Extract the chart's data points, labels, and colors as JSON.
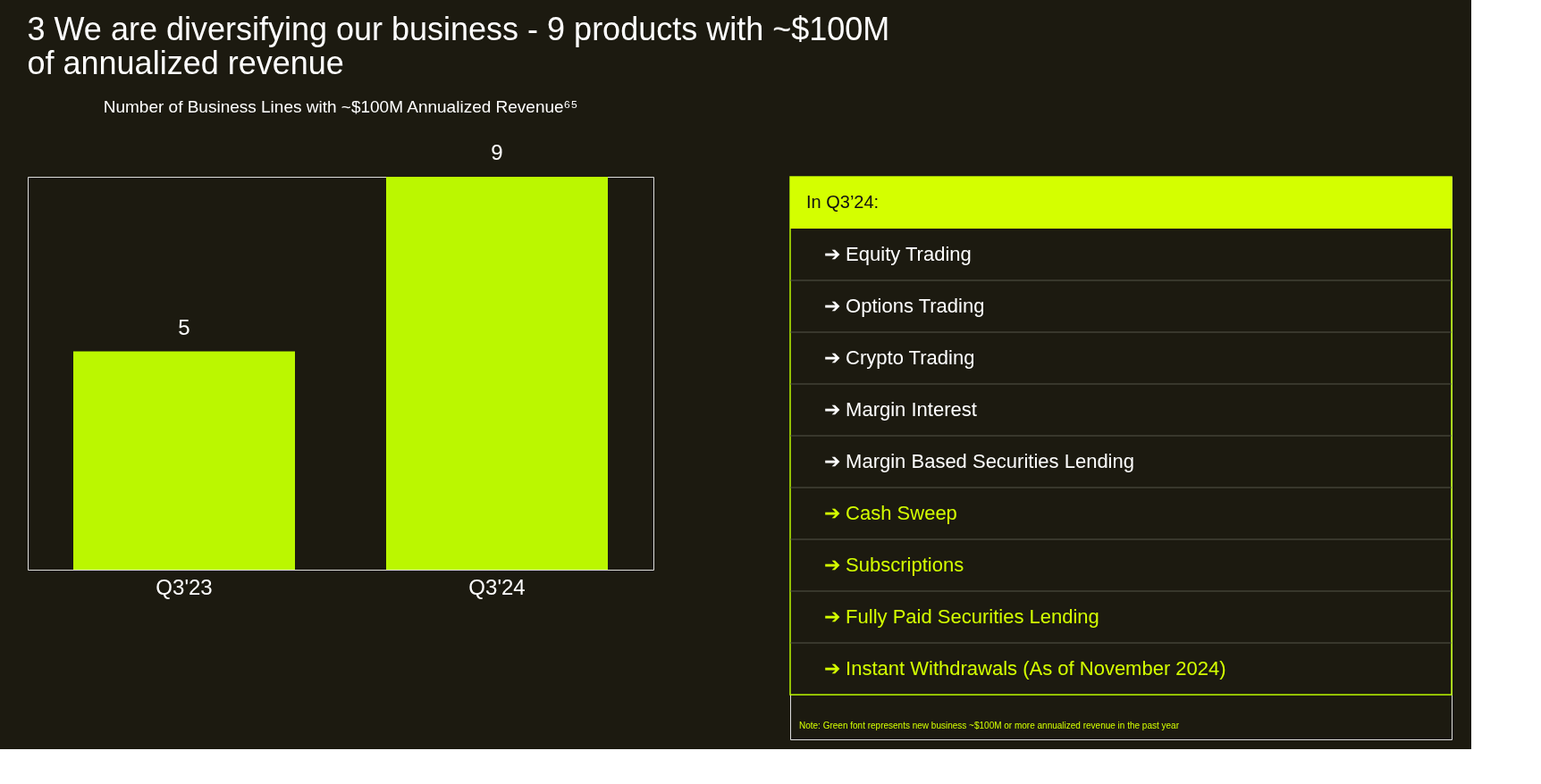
{
  "chart_data": [
    {
      "type": "bar",
      "title": "3 We are diversifying our business - 9 products with ~$100M of annualized revenue",
      "subtitle": "Number of Business Lines with ~$100M Annualized Revenue⁶⁵",
      "categories": [
        "Q3'23",
        "Q3'24"
      ],
      "values": [
        5,
        9
      ],
      "color": "#bbf700",
      "data_labels": true
    },
    {
      "type": "other",
      "title": "In Q3’24:",
      "annotations": [
        "➔  Equity Trading",
        "➔  Options Trading",
        "➔  Crypto Trading",
        "➔  Margin Interest",
        "➔  Margin Based Securities Lending",
        "➔  Cash Sweep",
        "➔  Subscriptions",
        "➔  Fully Paid Securities Lending",
        "➔  Instant Withdrawals (As of November 2024)",
        "Note: Green font represents new business ~$100M or more annualized revenue in the past year"
      ],
      "colors": [
        "#ffffff",
        "#ffffff",
        "#ffffff",
        "#ffffff",
        "#ffffff",
        "#d4ff00",
        "#d4ff00",
        "#d4ff00",
        "#d4ff00",
        "#d4ff00"
      ]
    }
  ]
}
